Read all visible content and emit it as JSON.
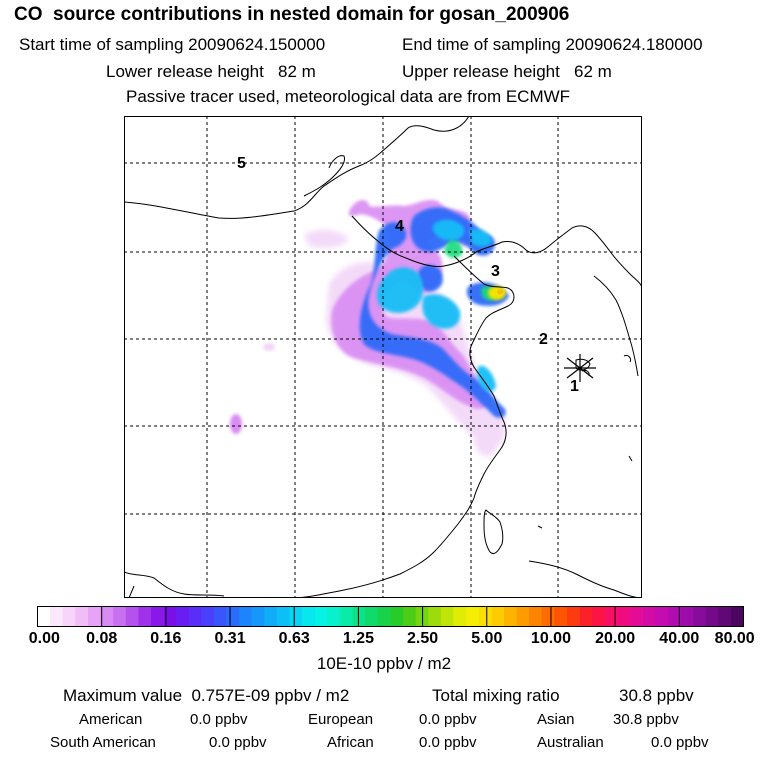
{
  "header": {
    "title": "CO  source contributions in nested domain for gosan_200906",
    "start_time": "Start time of sampling 20090624.150000",
    "end_time": "End time of sampling 20090624.180000",
    "lower_release": "Lower release height   82 m",
    "upper_release": "Upper release height   62 m",
    "note": "Passive tracer used, meteorological data are from ECMWF"
  },
  "map": {
    "station_labels": [
      "1",
      "2",
      "3",
      "4",
      "5"
    ],
    "receptor_marker": "receptor-star"
  },
  "colorbar": {
    "tick_labels": [
      "0.00",
      "0.08",
      "0.16",
      "0.31",
      "0.63",
      "1.25",
      "2.50",
      "5.00",
      "10.00",
      "20.00",
      "40.00",
      "80.00"
    ],
    "colors": [
      "#ffffff",
      "#fbe8fc",
      "#f7d4fa",
      "#f0bdf7",
      "#e7a3f5",
      "#d88cf3",
      "#c870f0",
      "#b552ee",
      "#a032ec",
      "#8b18ea",
      "#7a10e6",
      "#6a1cf4",
      "#5a2ef8",
      "#4a40fb",
      "#3856fc",
      "#2a6cfc",
      "#1e84fc",
      "#1698fa",
      "#10acf8",
      "#0cc0f5",
      "#0ad4f2",
      "#08e6ee",
      "#06f2e4",
      "#08f0cc",
      "#0aeaa8",
      "#0ce28a",
      "#10da6a",
      "#18d24a",
      "#28cc2a",
      "#4ccc14",
      "#74d410",
      "#9cdc0c",
      "#c0e408",
      "#e0ec06",
      "#f4ee04",
      "#fae000",
      "#fccc00",
      "#fcb400",
      "#fc9c00",
      "#fc8400",
      "#fc6c00",
      "#fc5400",
      "#fc3c10",
      "#fc2028",
      "#fc1444",
      "#f81064",
      "#f00c80",
      "#e40c96",
      "#d40ca6",
      "#c40cb0",
      "#b00cb2",
      "#9c0caa",
      "#880c9c",
      "#740a8a",
      "#600876",
      "#4a0660"
    ],
    "units": "10E-10 ppbv / m2"
  },
  "summary": {
    "maximum_value": "Maximum value  0.757E-09 ppbv / m2",
    "total_mixing_ratio_label": "Total mixing ratio",
    "total_mixing_ratio_value": "30.8 ppbv"
  },
  "regions": [
    {
      "name": "American",
      "value": "0.0 ppbv"
    },
    {
      "name": "European",
      "value": "0.0 ppbv"
    },
    {
      "name": "Asian",
      "value": "30.8 ppbv"
    },
    {
      "name": "South American",
      "value": "0.0 ppbv"
    },
    {
      "name": "African",
      "value": "0.0 ppbv"
    },
    {
      "name": "Australian",
      "value": "0.0 ppbv"
    }
  ]
}
